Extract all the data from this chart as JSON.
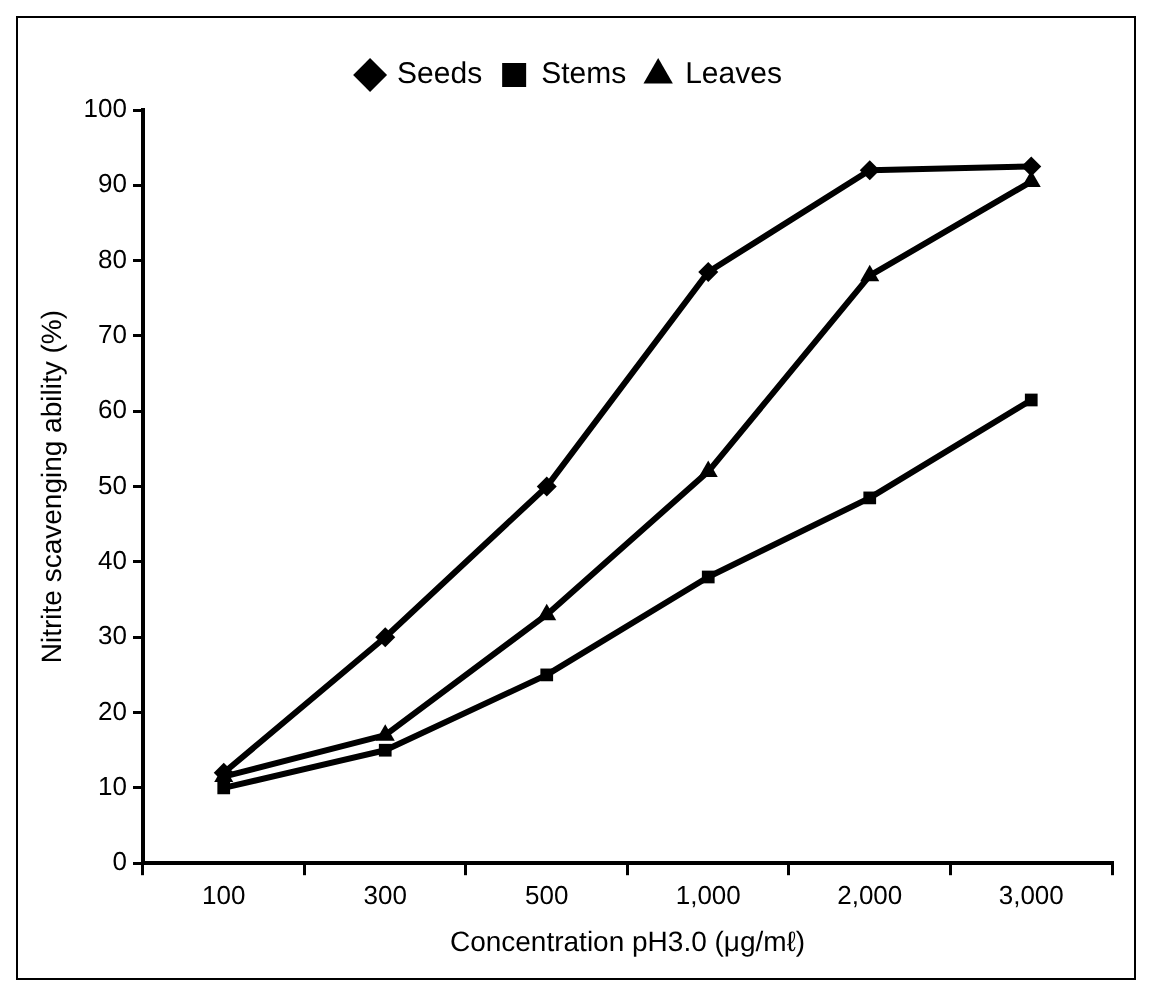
{
  "chart_data": {
    "type": "line",
    "xlabel": "Concentration pH3.0 (μg/mℓ)",
    "ylabel": "Nitrite scavenging ability (%)",
    "categories": [
      "100",
      "300",
      "500",
      "1,000",
      "2,000",
      "3,000"
    ],
    "series": [
      {
        "name": "Seeds",
        "color": "#000000",
        "marker": "diamond",
        "values": [
          12,
          30,
          50,
          78.5,
          92,
          92.5
        ]
      },
      {
        "name": "Stems",
        "color": "#000000",
        "marker": "square",
        "values": [
          10,
          15,
          25,
          38,
          48.5,
          61.5
        ]
      },
      {
        "name": "Leaves",
        "color": "#000000",
        "marker": "triangle",
        "values": [
          11.5,
          17,
          33,
          52,
          78,
          90.5
        ]
      }
    ],
    "ylim": [
      0,
      100
    ],
    "yticks": [
      0,
      10,
      20,
      30,
      40,
      50,
      60,
      70,
      80,
      90,
      100
    ],
    "grid": false,
    "legend": "top",
    "line_style": "solid"
  }
}
